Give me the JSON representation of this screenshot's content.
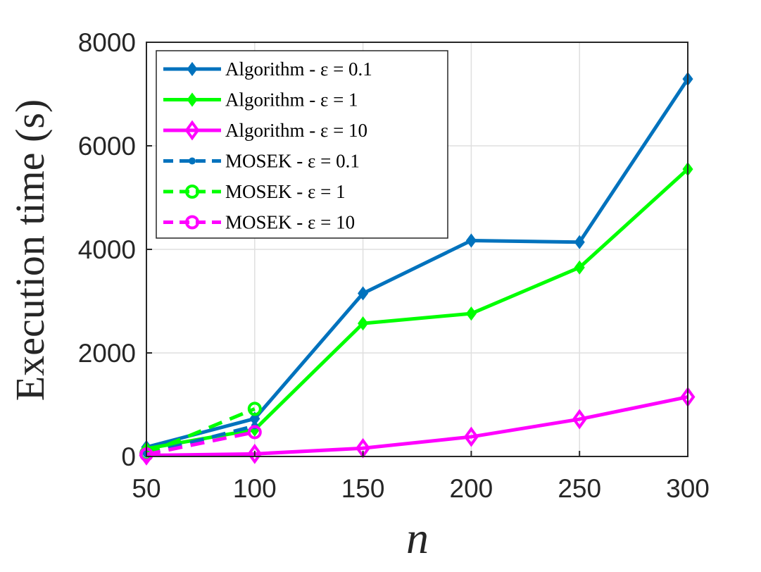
{
  "chart_data": {
    "type": "line",
    "xlabel": "n",
    "ylabel": "Execution time (s)",
    "x_ticks": [
      "50",
      "100",
      "150",
      "200",
      "250",
      "300"
    ],
    "y_ticks": [
      "0",
      "2000",
      "4000",
      "6000",
      "8000"
    ],
    "xlim": [
      50,
      300
    ],
    "ylim": [
      0,
      8000
    ],
    "grid": true,
    "legend_position": "top-left",
    "series": [
      {
        "name": "Algorithm - ε = 0.1",
        "color": "#0072BD",
        "style": "solid",
        "marker": "diamond-filled",
        "x": [
          50,
          100,
          150,
          200,
          250,
          300
        ],
        "y": [
          180,
          730,
          3150,
          4170,
          4140,
          7290
        ]
      },
      {
        "name": "Algorithm - ε = 1",
        "color": "#00FF00",
        "style": "solid",
        "marker": "diamond-filled",
        "x": [
          50,
          100,
          150,
          200,
          250,
          300
        ],
        "y": [
          150,
          520,
          2570,
          2760,
          3650,
          5550
        ]
      },
      {
        "name": "Algorithm - ε = 10",
        "color": "#FF00FF",
        "style": "solid",
        "marker": "diamond-open",
        "x": [
          50,
          100,
          150,
          200,
          250,
          300
        ],
        "y": [
          20,
          50,
          160,
          380,
          720,
          1150
        ]
      },
      {
        "name": "MOSEK - ε = 0.1",
        "color": "#0072BD",
        "style": "dashed",
        "marker": "dot",
        "x": [
          50,
          100
        ],
        "y": [
          50,
          590
        ]
      },
      {
        "name": "MOSEK - ε = 1",
        "color": "#00FF00",
        "style": "dashed",
        "marker": "circle",
        "x": [
          50,
          100
        ],
        "y": [
          60,
          920
        ]
      },
      {
        "name": "MOSEK - ε = 10",
        "color": "#FF00FF",
        "style": "dashed",
        "marker": "circle",
        "x": [
          50,
          100
        ],
        "y": [
          40,
          470
        ]
      }
    ]
  }
}
